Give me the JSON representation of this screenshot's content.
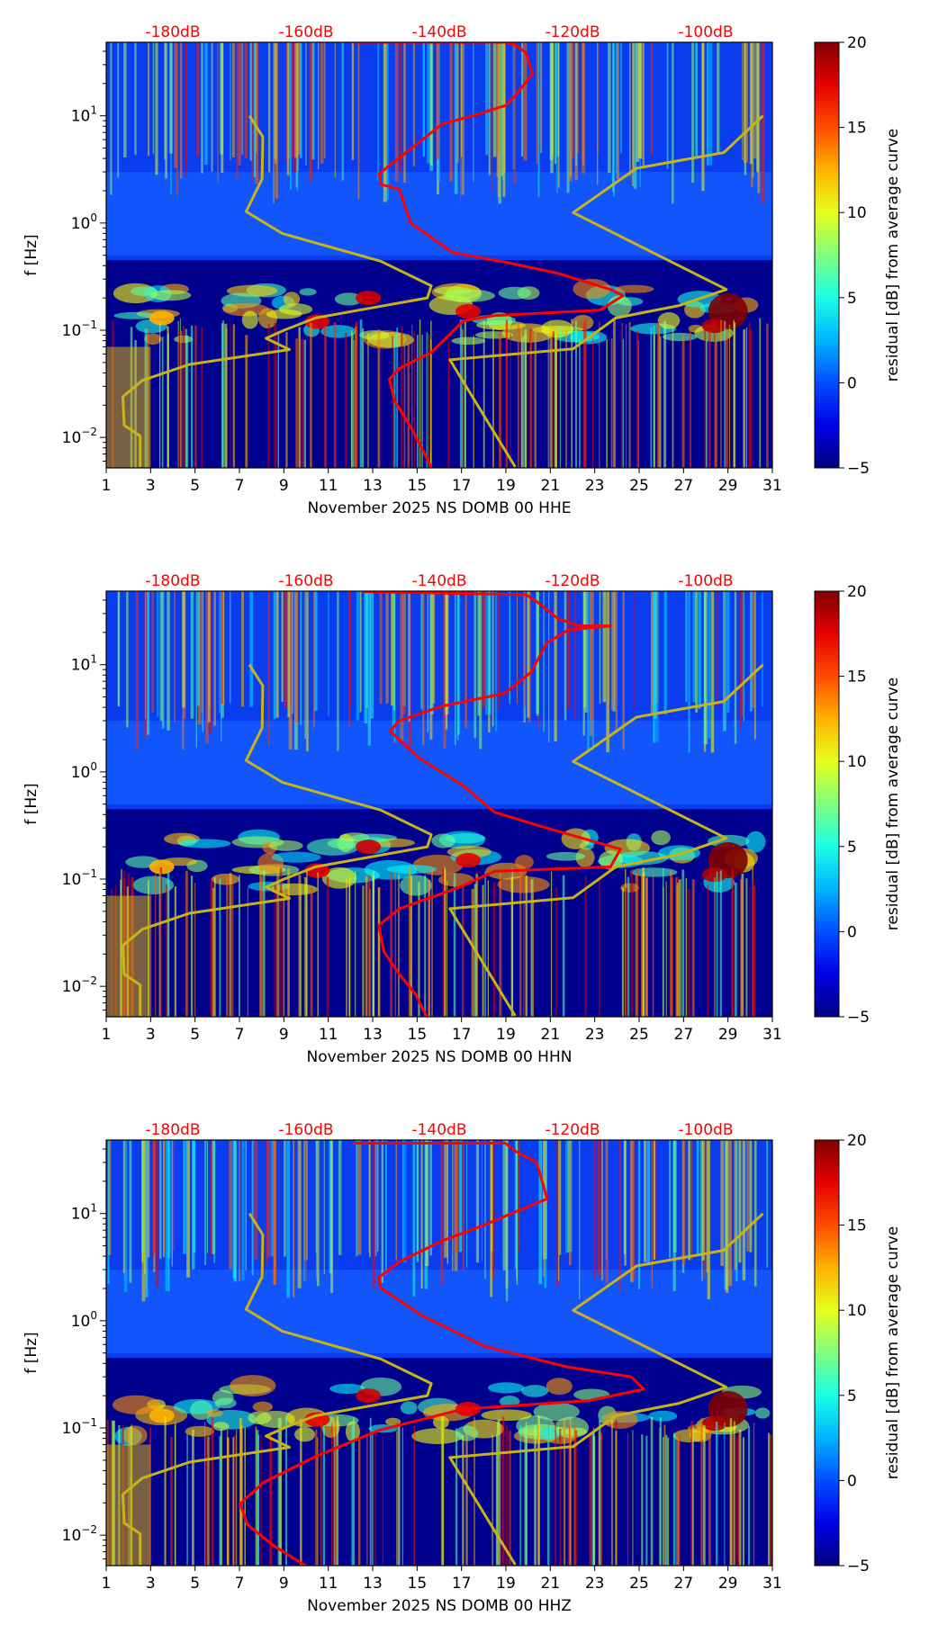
{
  "chart_data": [
    {
      "type": "heatmap",
      "xlabel": "November 2025 NS DOMB 00 HHE",
      "ylabel": "f [Hz]",
      "x_ticks": [
        "1",
        "3",
        "5",
        "7",
        "9",
        "11",
        "13",
        "15",
        "17",
        "19",
        "21",
        "23",
        "25",
        "27",
        "29",
        "31"
      ],
      "xlim": [
        1,
        31
      ],
      "ylim": [
        0.0052,
        48.5
      ],
      "yscale": "log",
      "y_ticks": [
        "10^1",
        "10^0",
        "10^-1",
        "10^-2"
      ],
      "top_axis_ticks": [
        "-180dB",
        "-160dB",
        "-140dB",
        "-120dB",
        "-100dB"
      ],
      "colorbar": {
        "label": "residual [dB] from average curve",
        "range": [
          -5,
          20
        ],
        "ticks": [
          "20",
          "15",
          "10",
          "5",
          "0",
          "−5"
        ]
      },
      "red_curve_db_hz": [
        [
          -153,
          48.5
        ],
        [
          -130,
          48.5
        ],
        [
          -128.5,
          45.4
        ],
        [
          -127,
          38.8
        ],
        [
          -126,
          24.7
        ],
        [
          -128.5,
          15.7
        ],
        [
          -130,
          12.5
        ],
        [
          -135,
          10
        ],
        [
          -139.6,
          8.35
        ],
        [
          -146,
          4.06
        ],
        [
          -149,
          2.89
        ],
        [
          -148.8,
          2.3
        ],
        [
          -146,
          2.06
        ],
        [
          -144.3,
          1.0
        ],
        [
          -138,
          0.53
        ],
        [
          -130,
          0.43
        ],
        [
          -122.2,
          0.34
        ],
        [
          -114.3,
          0.24
        ],
        [
          -112.4,
          0.21
        ],
        [
          -115.9,
          0.154
        ],
        [
          -131.7,
          0.137
        ],
        [
          -136.4,
          0.122
        ],
        [
          -138.8,
          0.087
        ],
        [
          -141.2,
          0.062
        ],
        [
          -146,
          0.044
        ],
        [
          -147.5,
          0.035
        ],
        [
          -146.7,
          0.022
        ],
        [
          -144,
          0.0116
        ],
        [
          -141.2,
          0.0053
        ]
      ]
    },
    {
      "type": "heatmap",
      "xlabel": "November 2025 NS DOMB 00 HHN",
      "ylabel": "f [Hz]",
      "x_ticks": [
        "1",
        "3",
        "5",
        "7",
        "9",
        "11",
        "13",
        "15",
        "17",
        "19",
        "21",
        "23",
        "25",
        "27",
        "29",
        "31"
      ],
      "xlim": [
        1,
        31
      ],
      "ylim": [
        0.0052,
        48.5
      ],
      "yscale": "log",
      "y_ticks": [
        "10^1",
        "10^0",
        "10^-1",
        "10^-2"
      ],
      "top_axis_ticks": [
        "-180dB",
        "-160dB",
        "-140dB",
        "-120dB",
        "-100dB"
      ],
      "colorbar": {
        "label": "residual [dB] from average curve",
        "range": [
          -5,
          20
        ],
        "ticks": [
          "20",
          "15",
          "10",
          "5",
          "0",
          "−5"
        ]
      },
      "red_curve_db_hz": [
        [
          -151.5,
          48
        ],
        [
          -127,
          45
        ],
        [
          -125.4,
          38.8
        ],
        [
          -122.2,
          26.9
        ],
        [
          -119,
          23
        ],
        [
          -114.3,
          23
        ],
        [
          -120.7,
          21
        ],
        [
          -123.9,
          15.8
        ],
        [
          -126.2,
          8.5
        ],
        [
          -130.2,
          5.4
        ],
        [
          -139.6,
          4.1
        ],
        [
          -146,
          3.0
        ],
        [
          -147.4,
          2.4
        ],
        [
          -142.9,
          1.33
        ],
        [
          -136.5,
          0.75
        ],
        [
          -131.7,
          0.42
        ],
        [
          -123.9,
          0.3
        ],
        [
          -115.2,
          0.21
        ],
        [
          -112.8,
          0.19
        ],
        [
          -114.3,
          0.13
        ],
        [
          -131.7,
          0.118
        ],
        [
          -137.2,
          0.083
        ],
        [
          -146,
          0.053
        ],
        [
          -149.1,
          0.037
        ],
        [
          -148.3,
          0.021
        ],
        [
          -146,
          0.013
        ],
        [
          -143.5,
          0.0083
        ],
        [
          -141.9,
          0.0052
        ]
      ]
    },
    {
      "type": "heatmap",
      "xlabel": "November 2025 NS DOMB 00 HHZ",
      "ylabel": "f [Hz]",
      "x_ticks": [
        "1",
        "3",
        "5",
        "7",
        "9",
        "11",
        "13",
        "15",
        "17",
        "19",
        "21",
        "23",
        "25",
        "27",
        "29",
        "31"
      ],
      "xlim": [
        1,
        31
      ],
      "ylim": [
        0.0052,
        48.5
      ],
      "yscale": "log",
      "y_ticks": [
        "10^1",
        "10^0",
        "10^-1",
        "10^-2"
      ],
      "top_axis_ticks": [
        "-180dB",
        "-160dB",
        "-140dB",
        "-120dB",
        "-100dB"
      ],
      "colorbar": {
        "label": "residual [dB] from average curve",
        "range": [
          -5,
          20
        ],
        "ticks": [
          "20",
          "15",
          "10",
          "5",
          "0",
          "−5"
        ]
      },
      "red_curve_db_hz": [
        [
          -153,
          45.3
        ],
        [
          -130.1,
          45.3
        ],
        [
          -128.5,
          37.9
        ],
        [
          -125.4,
          30.2
        ],
        [
          -123.8,
          13.7
        ],
        [
          -127.7,
          10.9
        ],
        [
          -133.3,
          7.8
        ],
        [
          -139.6,
          5.56
        ],
        [
          -146,
          3.54
        ],
        [
          -149.1,
          2.53
        ],
        [
          -148.8,
          2.02
        ],
        [
          -142.8,
          1.14
        ],
        [
          -133.3,
          0.58
        ],
        [
          -120.7,
          0.37
        ],
        [
          -111.2,
          0.3
        ],
        [
          -109.3,
          0.23
        ],
        [
          -117.5,
          0.18
        ],
        [
          -136.4,
          0.15
        ],
        [
          -149.1,
          0.095
        ],
        [
          -158.6,
          0.054
        ],
        [
          -166.4,
          0.031
        ],
        [
          -169.9,
          0.0196
        ],
        [
          -168.8,
          0.0125
        ],
        [
          -164.9,
          0.008
        ],
        [
          -160.1,
          0.005
        ]
      ]
    }
  ],
  "noise_models": {
    "nlnm_db_hz": [
      [
        -168.5,
        10
      ],
      [
        -166.5,
        6.37
      ],
      [
        -166.6,
        2.58
      ],
      [
        -169.0,
        1.28
      ],
      [
        -163.6,
        0.8
      ],
      [
        -148.8,
        0.44
      ],
      [
        -141.2,
        0.26
      ],
      [
        -141.8,
        0.2
      ],
      [
        -158.6,
        0.13
      ],
      [
        -163.3,
        0.1
      ],
      [
        -166.0,
        0.084
      ],
      [
        -162.5,
        0.066
      ],
      [
        -177.5,
        0.048
      ],
      [
        -184.6,
        0.034
      ],
      [
        -187.5,
        0.024
      ],
      [
        -187.3,
        0.013
      ],
      [
        -184.9,
        0.0103
      ],
      [
        -184.9,
        0.0053
      ]
    ],
    "nhnm_db_hz": [
      [
        -91.4,
        10
      ],
      [
        -97.3,
        4.54
      ],
      [
        -110.4,
        3.24
      ],
      [
        -119.9,
        1.25
      ],
      [
        -96.9,
        0.24
      ],
      [
        -104.0,
        0.17
      ],
      [
        -113.5,
        0.13
      ],
      [
        -119.9,
        0.067
      ],
      [
        -138.4,
        0.053
      ],
      [
        -128.6,
        0.0053
      ]
    ]
  },
  "colors": {
    "red_curve": "#ff0000",
    "noise_model": "#c8b418",
    "top_axis_text": "#ff0000"
  }
}
